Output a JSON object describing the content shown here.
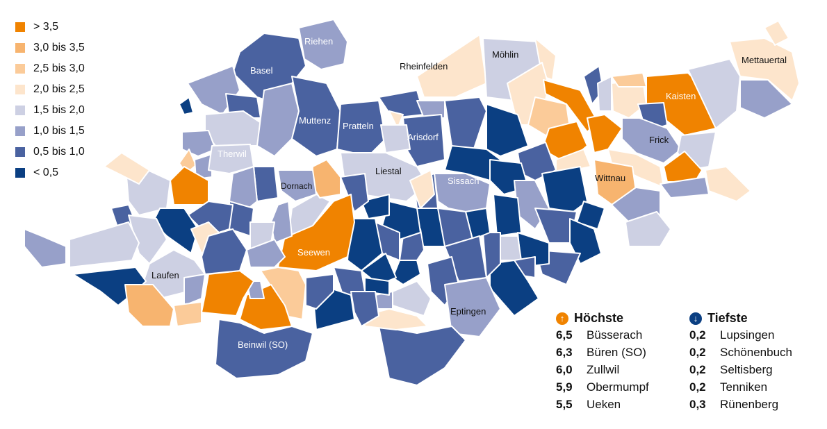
{
  "legend": [
    {
      "label": "> 3,5",
      "color": "#f08300"
    },
    {
      "label": "3,0 bis 3,5",
      "color": "#f7b46f"
    },
    {
      "label": "2,5 bis 3,0",
      "color": "#fbcb99"
    },
    {
      "label": "2,0 bis 2,5",
      "color": "#fde5cc"
    },
    {
      "label": "1,5 bis 2,0",
      "color": "#cdd0e3"
    },
    {
      "label": "1,0 bis 1,5",
      "color": "#97a0c9"
    },
    {
      "label": "0,5 bis 1,0",
      "color": "#4a62a0"
    },
    {
      "label": "< 0,5",
      "color": "#0b3f82"
    }
  ],
  "places": {
    "riehen": "Riehen",
    "basel": "Basel",
    "rheinfelden": "Rheinfelden",
    "moehlin": "Möhlin",
    "mettauertal": "Mettauertal",
    "muttenz": "Muttenz",
    "pratteln": "Pratteln",
    "arisdorf": "Arisdorf",
    "kaisten": "Kaisten",
    "therwil": "Therwil",
    "liestal": "Liestal",
    "frick": "Frick",
    "dornach": "Dornach",
    "sissach": "Sissach",
    "wittnau": "Wittnau",
    "seewen": "Seewen",
    "laufen": "Laufen",
    "eptingen": "Eptingen",
    "beinwil": "Beinwil (SO)"
  },
  "highest": {
    "title": "Höchste",
    "icon": "arrow-up-icon",
    "color": "#f08300",
    "rows": [
      {
        "value": "6,5",
        "name": "Büsserach"
      },
      {
        "value": "6,3",
        "name": "Büren (SO)"
      },
      {
        "value": "6,0",
        "name": "Zullwil"
      },
      {
        "value": "5,9",
        "name": "Obermumpf"
      },
      {
        "value": "5,5",
        "name": "Ueken"
      }
    ]
  },
  "lowest": {
    "title": "Tiefste",
    "icon": "arrow-down-icon",
    "color": "#0b3f82",
    "rows": [
      {
        "value": "0,2",
        "name": "Lupsingen"
      },
      {
        "value": "0,2",
        "name": "Schönenbuch"
      },
      {
        "value": "0,2",
        "name": "Seltisberg"
      },
      {
        "value": "0,2",
        "name": "Tenniken"
      },
      {
        "value": "0,3",
        "name": "Rünenberg"
      }
    ]
  }
}
